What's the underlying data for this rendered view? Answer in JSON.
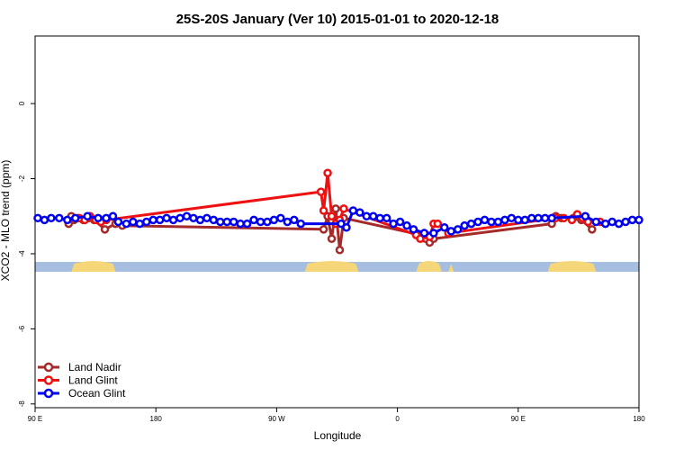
{
  "chart_data": {
    "type": "line",
    "title": "25S-20S January (Ver 10)   2015-01-01 to 2020-12-18",
    "xlabel": "Longitude",
    "ylabel": "XCO2 - MLO trend (ppm)",
    "xlim": [
      90,
      540
    ],
    "ylim": [
      -8.1,
      1.8
    ],
    "x_ticks": [
      {
        "value": 90,
        "label": "90 E"
      },
      {
        "value": 180,
        "label": "180"
      },
      {
        "value": 270,
        "label": "90 W"
      },
      {
        "value": 360,
        "label": "0"
      },
      {
        "value": 450,
        "label": "90 E"
      },
      {
        "value": 540,
        "label": "180"
      }
    ],
    "y_ticks": [
      {
        "value": 0,
        "label": "0"
      },
      {
        "value": -2,
        "label": "-2"
      },
      {
        "value": -4,
        "label": "-4"
      },
      {
        "value": -6,
        "label": "-6"
      },
      {
        "value": -8,
        "label": "-8"
      }
    ],
    "legend": {
      "position": "bottom-left"
    },
    "land_bands": [
      [
        117,
        150
      ],
      [
        291,
        331
      ],
      [
        374,
        393
      ],
      [
        398,
        402
      ],
      [
        472,
        508
      ]
    ],
    "colors": {
      "land_nadir": "#a52a2a",
      "land_glint": "#ee1111",
      "ocean_glint": "#0000ee",
      "land_map": "#f5d77a",
      "ocean_map": "#a6bedf"
    },
    "series": [
      {
        "name": "Land Nadir",
        "color": "#a52a2a",
        "points": [
          [
            115,
            -3.2
          ],
          [
            117,
            -3.0
          ],
          [
            119,
            -3.1
          ],
          [
            122,
            -3.05
          ],
          [
            126,
            -3.1
          ],
          [
            130,
            -3.05
          ],
          [
            134,
            -3.1
          ],
          [
            142,
            -3.35
          ],
          [
            150,
            -3.2
          ],
          [
            155,
            -3.25
          ],
          [
            305,
            -3.35
          ],
          [
            308,
            -3.0
          ],
          [
            311,
            -3.6
          ],
          [
            314,
            -2.8
          ],
          [
            317,
            -3.9
          ],
          [
            320,
            -3.05
          ],
          [
            378,
            -3.5
          ],
          [
            381,
            -3.6
          ],
          [
            384,
            -3.7
          ],
          [
            387,
            -3.6
          ],
          [
            475,
            -3.2
          ],
          [
            478,
            -3.0
          ],
          [
            482,
            -3.05
          ],
          [
            491,
            -3.05
          ],
          [
            497,
            -3.1
          ],
          [
            505,
            -3.35
          ]
        ]
      },
      {
        "name": "Land Glint",
        "color": "#ee1111",
        "points": [
          [
            123,
            -3.05
          ],
          [
            127,
            -3.1
          ],
          [
            131,
            -3.0
          ],
          [
            135,
            -3.1
          ],
          [
            139,
            -3.15
          ],
          [
            143,
            -3.1
          ],
          [
            303,
            -2.35
          ],
          [
            305,
            -2.85
          ],
          [
            308,
            -1.85
          ],
          [
            311,
            -3.0
          ],
          [
            314,
            -3.2
          ],
          [
            317,
            -3.1
          ],
          [
            320,
            -2.8
          ],
          [
            374,
            -3.5
          ],
          [
            377,
            -3.6
          ],
          [
            381,
            -3.5
          ],
          [
            384,
            -3.55
          ],
          [
            387,
            -3.2
          ],
          [
            390,
            -3.2
          ],
          [
            398,
            -3.45
          ],
          [
            478,
            -3.05
          ],
          [
            484,
            -3.05
          ],
          [
            490,
            -3.1
          ],
          [
            494,
            -2.95
          ],
          [
            498,
            -3.05
          ],
          [
            502,
            -3.15
          ],
          [
            511,
            -3.15
          ]
        ]
      },
      {
        "name": "Ocean Glint",
        "color": "#0000ee",
        "points": [
          [
            92,
            -3.05
          ],
          [
            97,
            -3.1
          ],
          [
            102,
            -3.05
          ],
          [
            108,
            -3.05
          ],
          [
            114,
            -3.1
          ],
          [
            120,
            -3.05
          ],
          [
            129,
            -3.0
          ],
          [
            137,
            -3.05
          ],
          [
            143,
            -3.05
          ],
          [
            148,
            -3.0
          ],
          [
            152,
            -3.15
          ],
          [
            158,
            -3.2
          ],
          [
            163,
            -3.15
          ],
          [
            168,
            -3.2
          ],
          [
            173,
            -3.15
          ],
          [
            178,
            -3.1
          ],
          [
            183,
            -3.1
          ],
          [
            188,
            -3.05
          ],
          [
            193,
            -3.1
          ],
          [
            198,
            -3.05
          ],
          [
            203,
            -3.0
          ],
          [
            208,
            -3.05
          ],
          [
            213,
            -3.1
          ],
          [
            218,
            -3.05
          ],
          [
            223,
            -3.1
          ],
          [
            228,
            -3.15
          ],
          [
            233,
            -3.15
          ],
          [
            238,
            -3.15
          ],
          [
            243,
            -3.2
          ],
          [
            248,
            -3.2
          ],
          [
            253,
            -3.1
          ],
          [
            258,
            -3.15
          ],
          [
            263,
            -3.15
          ],
          [
            268,
            -3.1
          ],
          [
            273,
            -3.05
          ],
          [
            278,
            -3.15
          ],
          [
            283,
            -3.1
          ],
          [
            288,
            -3.2
          ],
          [
            318,
            -3.2
          ],
          [
            322,
            -3.3
          ],
          [
            327,
            -2.85
          ],
          [
            332,
            -2.9
          ],
          [
            337,
            -3.0
          ],
          [
            342,
            -3.0
          ],
          [
            347,
            -3.05
          ],
          [
            352,
            -3.05
          ],
          [
            357,
            -3.2
          ],
          [
            362,
            -3.15
          ],
          [
            367,
            -3.25
          ],
          [
            372,
            -3.35
          ],
          [
            380,
            -3.45
          ],
          [
            387,
            -3.45
          ],
          [
            395,
            -3.3
          ],
          [
            400,
            -3.4
          ],
          [
            405,
            -3.35
          ],
          [
            410,
            -3.25
          ],
          [
            415,
            -3.2
          ],
          [
            420,
            -3.15
          ],
          [
            425,
            -3.1
          ],
          [
            430,
            -3.15
          ],
          [
            435,
            -3.15
          ],
          [
            440,
            -3.1
          ],
          [
            445,
            -3.05
          ],
          [
            450,
            -3.1
          ],
          [
            455,
            -3.1
          ],
          [
            460,
            -3.05
          ],
          [
            465,
            -3.05
          ],
          [
            470,
            -3.05
          ],
          [
            475,
            -3.05
          ],
          [
            500,
            -3.0
          ],
          [
            508,
            -3.15
          ],
          [
            515,
            -3.2
          ],
          [
            520,
            -3.15
          ],
          [
            525,
            -3.2
          ],
          [
            530,
            -3.15
          ],
          [
            535,
            -3.1
          ],
          [
            540,
            -3.1
          ]
        ]
      }
    ]
  }
}
